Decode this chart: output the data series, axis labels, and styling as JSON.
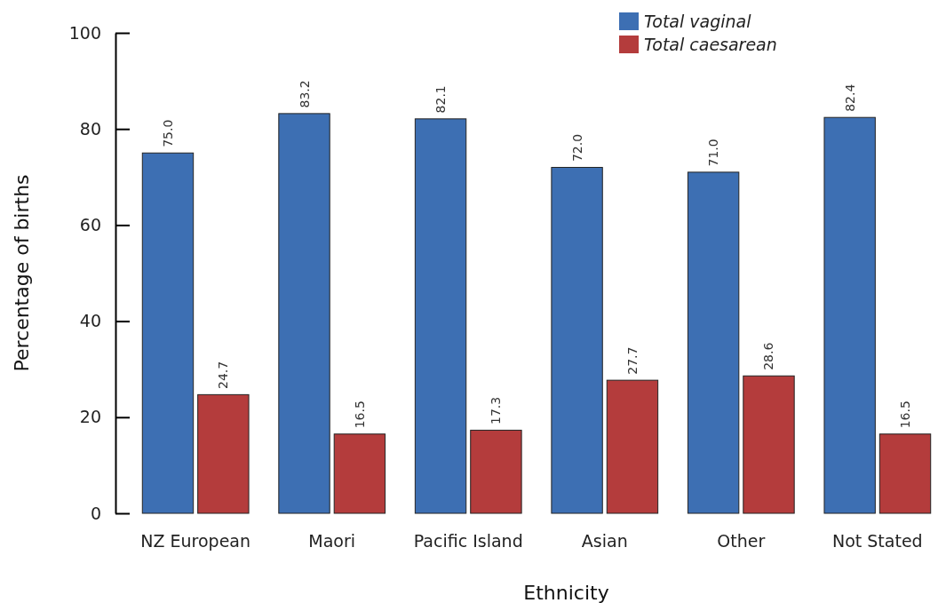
{
  "chart_data": {
    "type": "bar",
    "xlabel": "Ethnicity",
    "ylabel": "Percentage of births",
    "categories": [
      "NZ European",
      "Maori",
      "Pacific Island",
      "Asian",
      "Other",
      "Not Stated"
    ],
    "series": [
      {
        "name": "Total vaginal",
        "color": "#3d6fb3",
        "values": [
          75.0,
          83.2,
          82.1,
          72.0,
          71.0,
          82.4
        ],
        "value_labels": [
          "75.0",
          "83.2",
          "82.1",
          "72.0",
          "71.0",
          "82.4"
        ]
      },
      {
        "name": "Total caesarean",
        "color": "#b43c3c",
        "values": [
          24.7,
          16.5,
          17.3,
          27.7,
          28.6,
          16.5
        ],
        "value_labels": [
          "24.7",
          "16.5",
          "17.3",
          "27.7",
          "28.6",
          "16.5"
        ]
      }
    ],
    "ylim": [
      0,
      100
    ],
    "yticks": [
      0,
      20,
      40,
      60,
      80,
      100
    ],
    "legend": "top right",
    "grid": false
  }
}
